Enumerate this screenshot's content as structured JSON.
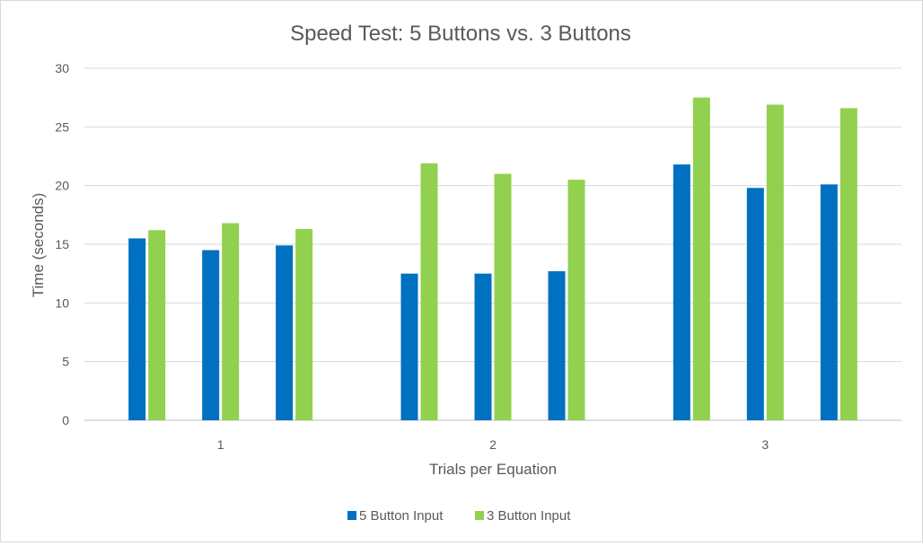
{
  "chart_data": {
    "type": "bar",
    "title": "Speed Test: 5 Buttons vs. 3 Buttons",
    "xlabel": "Trials per Equation",
    "ylabel": "Time (seconds)",
    "ylim": [
      0,
      30
    ],
    "yticks": [
      "0",
      "5",
      "10",
      "15",
      "20",
      "25",
      "30"
    ],
    "grid": true,
    "legend_position": "bottom",
    "groups": [
      {
        "label": "1",
        "bars": [
          {
            "series": "5 Button Input",
            "value": 15.5
          },
          {
            "series": "3 Button Input",
            "value": 16.2
          },
          {
            "series": "5 Button Input",
            "value": 14.5
          },
          {
            "series": "3 Button Input",
            "value": 16.8
          },
          {
            "series": "5 Button Input",
            "value": 14.9
          },
          {
            "series": "3 Button Input",
            "value": 16.3
          }
        ]
      },
      {
        "label": "2",
        "bars": [
          {
            "series": "5 Button Input",
            "value": 12.5
          },
          {
            "series": "3 Button Input",
            "value": 21.9
          },
          {
            "series": "5 Button Input",
            "value": 12.5
          },
          {
            "series": "3 Button Input",
            "value": 21.0
          },
          {
            "series": "5 Button Input",
            "value": 12.7
          },
          {
            "series": "3 Button Input",
            "value": 20.5
          }
        ]
      },
      {
        "label": "3",
        "bars": [
          {
            "series": "5 Button Input",
            "value": 21.8
          },
          {
            "series": "3 Button Input",
            "value": 27.5
          },
          {
            "series": "5 Button Input",
            "value": 19.8
          },
          {
            "series": "3 Button Input",
            "value": 26.9
          },
          {
            "series": "5 Button Input",
            "value": 20.1
          },
          {
            "series": "3 Button Input",
            "value": 26.6
          }
        ]
      }
    ],
    "series": [
      {
        "name": "5 Button Input",
        "color": "#0070c0"
      },
      {
        "name": "3 Button Input",
        "color": "#92d050"
      }
    ]
  }
}
